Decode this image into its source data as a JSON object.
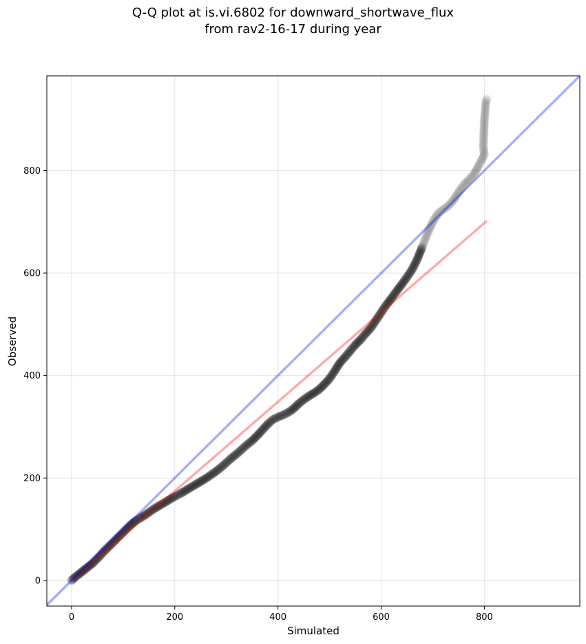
{
  "chart_data": {
    "type": "scatter",
    "title_lines": [
      "Q-Q plot at is.vi.6802 for downward_shortwave_flux",
      "from rav2-16-17 during year"
    ],
    "xlabel": "Simulated",
    "ylabel": "Observed",
    "xlim": [
      -48,
      985
    ],
    "ylim": [
      -50,
      985
    ],
    "xticks": [
      0,
      200,
      400,
      600,
      800
    ],
    "yticks": [
      0,
      200,
      400,
      600,
      800
    ],
    "grid": true,
    "series": [
      {
        "kind": "quantile-points",
        "color": "#000000",
        "points": [
          [
            0,
            0
          ],
          [
            3,
            3
          ],
          [
            6,
            6
          ],
          [
            10,
            9
          ],
          [
            15,
            13
          ],
          [
            20,
            17
          ],
          [
            25,
            21
          ],
          [
            30,
            25
          ],
          [
            35,
            29
          ],
          [
            40,
            33
          ],
          [
            45,
            38
          ],
          [
            50,
            43
          ],
          [
            55,
            48
          ],
          [
            60,
            54
          ],
          [
            65,
            59
          ],
          [
            70,
            64
          ],
          [
            75,
            69
          ],
          [
            80,
            74
          ],
          [
            85,
            79
          ],
          [
            90,
            84
          ],
          [
            95,
            89
          ],
          [
            100,
            94
          ],
          [
            105,
            99
          ],
          [
            110,
            104
          ],
          [
            115,
            109
          ],
          [
            120,
            113
          ],
          [
            125,
            117
          ],
          [
            130,
            120
          ],
          [
            140,
            126
          ],
          [
            150,
            133
          ],
          [
            160,
            140
          ],
          [
            170,
            146
          ],
          [
            180,
            152
          ],
          [
            190,
            158
          ],
          [
            200,
            164
          ],
          [
            210,
            169
          ],
          [
            220,
            175
          ],
          [
            230,
            181
          ],
          [
            240,
            187
          ],
          [
            250,
            193
          ],
          [
            260,
            199
          ],
          [
            270,
            206
          ],
          [
            280,
            213
          ],
          [
            290,
            221
          ],
          [
            300,
            230
          ],
          [
            310,
            239
          ],
          [
            320,
            247
          ],
          [
            330,
            256
          ],
          [
            340,
            265
          ],
          [
            350,
            273
          ],
          [
            360,
            283
          ],
          [
            370,
            294
          ],
          [
            380,
            305
          ],
          [
            390,
            314
          ],
          [
            400,
            319
          ],
          [
            410,
            323
          ],
          [
            420,
            328
          ],
          [
            430,
            335
          ],
          [
            440,
            345
          ],
          [
            450,
            353
          ],
          [
            460,
            360
          ],
          [
            470,
            366
          ],
          [
            480,
            373
          ],
          [
            490,
            383
          ],
          [
            500,
            394
          ],
          [
            510,
            409
          ],
          [
            520,
            425
          ],
          [
            530,
            436
          ],
          [
            540,
            448
          ],
          [
            550,
            460
          ],
          [
            560,
            470
          ],
          [
            570,
            482
          ],
          [
            580,
            493
          ],
          [
            590,
            508
          ],
          [
            600,
            523
          ],
          [
            610,
            538
          ],
          [
            620,
            551
          ],
          [
            630,
            565
          ],
          [
            640,
            578
          ],
          [
            650,
            592
          ],
          [
            660,
            607
          ],
          [
            670,
            627
          ],
          [
            680,
            652
          ],
          [
            690,
            678
          ],
          [
            700,
            700
          ],
          [
            710,
            716
          ],
          [
            720,
            724
          ],
          [
            730,
            731
          ],
          [
            740,
            742
          ],
          [
            750,
            758
          ],
          [
            760,
            772
          ],
          [
            770,
            782
          ],
          [
            780,
            793
          ],
          [
            790,
            812
          ],
          [
            800,
            831
          ],
          [
            798,
            845
          ],
          [
            800,
            898
          ],
          [
            803,
            936
          ],
          [
            805,
            940
          ]
        ]
      },
      {
        "kind": "fit-line",
        "color": "#ff0000",
        "opacity": 0.33,
        "from": [
          0,
          0
        ],
        "to": [
          805,
          702
        ]
      },
      {
        "kind": "one-to-one-line",
        "color": "#0000ff",
        "opacity": 0.33,
        "from": [
          -48,
          -48
        ],
        "to": [
          985,
          985
        ]
      }
    ]
  }
}
